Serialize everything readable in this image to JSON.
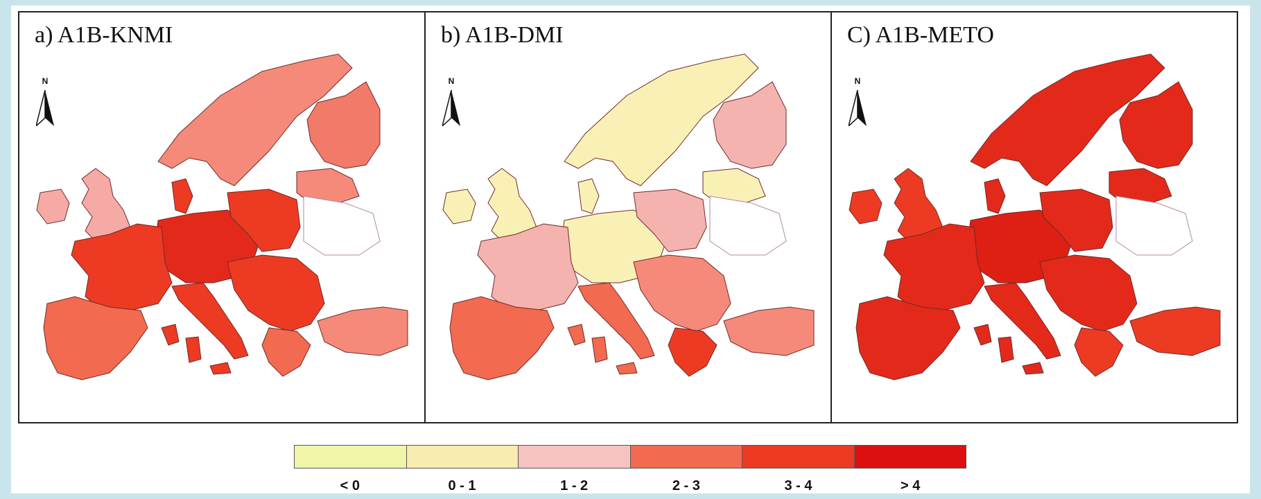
{
  "panels": [
    {
      "title": "a) A1B-KNMI",
      "fills": {
        "iberia": "#f26a4f",
        "france": "#ec3b22",
        "central": "#e32a1a",
        "uk": "#f5aaa5",
        "ireland": "#f5aaa5",
        "scandinavia": "#f58a7a",
        "finland": "#f27a68",
        "italy": "#ec3b22",
        "balkans": "#ec3b22",
        "poland": "#ec3b22",
        "baltics": "#f58a7a",
        "turkey": "#f58a7a",
        "denmark": "#ec3b22",
        "islands": "#ec3b22",
        "greece": "#f26a4f"
      }
    },
    {
      "title": "b) A1B-DMI",
      "fills": {
        "iberia": "#f26a4f",
        "france": "#f5b3b0",
        "central": "#f9f0b5",
        "uk": "#f9f0b5",
        "ireland": "#f9f0b5",
        "scandinavia": "#f9f0b5",
        "finland": "#f5b3b0",
        "italy": "#f26a4f",
        "balkans": "#f58a7a",
        "poland": "#f5b3b0",
        "baltics": "#f9f0b5",
        "turkey": "#f58a7a",
        "denmark": "#f9f0b5",
        "islands": "#f26a4f",
        "greece": "#ec3b22"
      }
    },
    {
      "title": "C) A1B-METO",
      "fills": {
        "iberia": "#e32a1a",
        "france": "#e32a1a",
        "central": "#dd1f14",
        "uk": "#ec3b22",
        "ireland": "#ec3b22",
        "scandinavia": "#e32a1a",
        "finland": "#e32a1a",
        "italy": "#e32a1a",
        "balkans": "#e32a1a",
        "poland": "#e32a1a",
        "baltics": "#e32a1a",
        "turkey": "#ec3b22",
        "denmark": "#e32a1a",
        "islands": "#e32a1a",
        "greece": "#ec3b22"
      }
    }
  ],
  "north_label": "N",
  "legend": [
    {
      "label": "< 0",
      "color": "#f0f5a8"
    },
    {
      "label": "0 - 1",
      "color": "#f9ecb0"
    },
    {
      "label": "1 - 2",
      "color": "#f7c3c0"
    },
    {
      "label": "2 - 3",
      "color": "#f26a4f"
    },
    {
      "label": "3 - 4",
      "color": "#ec3b22"
    },
    {
      "label": "> 4",
      "color": "#dd1010"
    }
  ]
}
